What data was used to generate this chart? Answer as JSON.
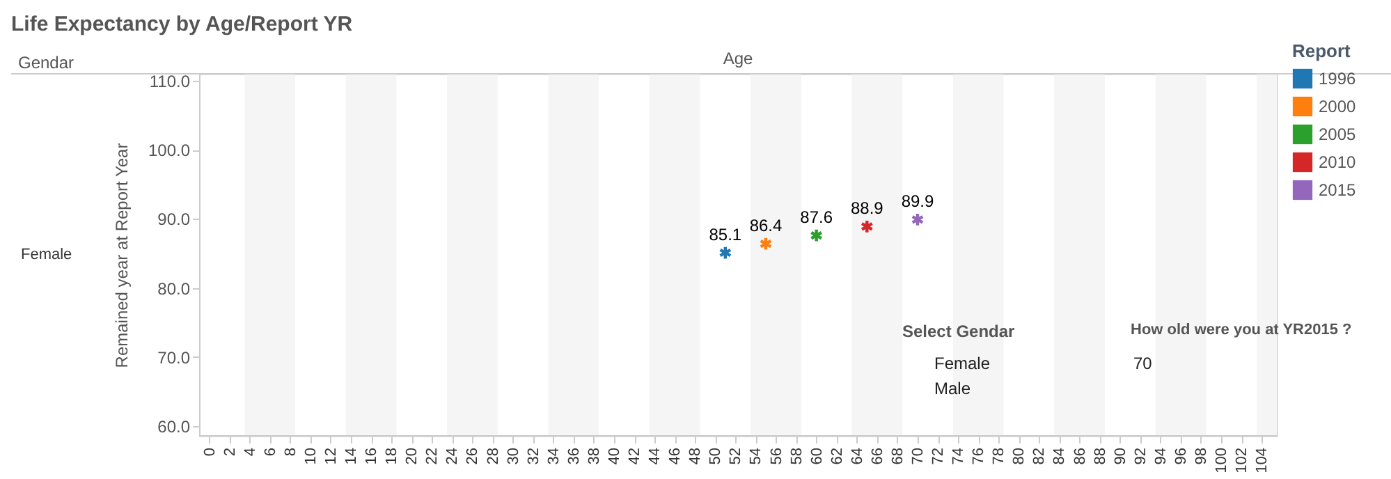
{
  "chart_data": {
    "type": "scatter",
    "title": "Life Expectancy by Age/Report YR",
    "xlabel": "Age",
    "ylabel": "Remained year at Report Year",
    "legend_title": "Report",
    "annotations": [
      "Gendar",
      "Female",
      "Select Gendar",
      "Female",
      "Male",
      "How old were you at YR2015 ?",
      "70"
    ],
    "series": [
      {
        "name": "1996",
        "color": "#1f77b4",
        "x": [
          51
        ],
        "values": [
          85.1
        ]
      },
      {
        "name": "2000",
        "color": "#ff7f0e",
        "x": [
          55
        ],
        "values": [
          86.4
        ]
      },
      {
        "name": "2005",
        "color": "#2ca02c",
        "x": [
          60
        ],
        "values": [
          87.6
        ]
      },
      {
        "name": "2010",
        "color": "#d62728",
        "x": [
          65
        ],
        "values": [
          88.9
        ]
      },
      {
        "name": "2015",
        "color": "#9467bd",
        "x": [
          70
        ],
        "values": [
          89.9
        ]
      }
    ],
    "xlim": [
      -1,
      105.5
    ],
    "ylim": [
      58.6,
      111
    ],
    "xticks": [
      0,
      2,
      4,
      6,
      8,
      10,
      12,
      14,
      16,
      18,
      20,
      22,
      24,
      26,
      28,
      30,
      32,
      34,
      36,
      38,
      40,
      42,
      44,
      46,
      48,
      50,
      52,
      54,
      56,
      58,
      60,
      62,
      64,
      66,
      68,
      70,
      72,
      74,
      76,
      78,
      80,
      82,
      84,
      86,
      88,
      90,
      92,
      94,
      96,
      98,
      100,
      102,
      104
    ],
    "yticks": [
      {
        "value": 60,
        "label": "60.0"
      },
      {
        "value": 70,
        "label": "70.0"
      },
      {
        "value": 80,
        "label": "80.0"
      },
      {
        "value": 90,
        "label": "90.0"
      },
      {
        "value": 100,
        "label": "100.0"
      },
      {
        "value": 110,
        "label": "110.0"
      }
    ],
    "bands": [
      {
        "axis": "x",
        "from": 3.5,
        "to": 8.5,
        "color": "#f5f5f5"
      },
      {
        "axis": "x",
        "from": 13.5,
        "to": 18.5,
        "color": "#f5f5f5"
      },
      {
        "axis": "x",
        "from": 23.5,
        "to": 28.5,
        "color": "#f5f5f5"
      },
      {
        "axis": "x",
        "from": 33.5,
        "to": 38.5,
        "color": "#f5f5f5"
      },
      {
        "axis": "x",
        "from": 43.5,
        "to": 48.5,
        "color": "#f5f5f5"
      },
      {
        "axis": "x",
        "from": 53.5,
        "to": 58.5,
        "color": "#f5f5f5"
      },
      {
        "axis": "x",
        "from": 63.5,
        "to": 68.5,
        "color": "#f5f5f5"
      },
      {
        "axis": "x",
        "from": 73.5,
        "to": 78.5,
        "color": "#f5f5f5"
      },
      {
        "axis": "x",
        "from": 83.5,
        "to": 88.5,
        "color": "#f5f5f5"
      },
      {
        "axis": "x",
        "from": 93.5,
        "to": 98.5,
        "color": "#f5f5f5"
      },
      {
        "axis": "x",
        "from": 103.5,
        "to": 105.5,
        "color": "#f5f5f5"
      }
    ],
    "data_labels": true,
    "legend": "top right",
    "marker": "cross"
  }
}
